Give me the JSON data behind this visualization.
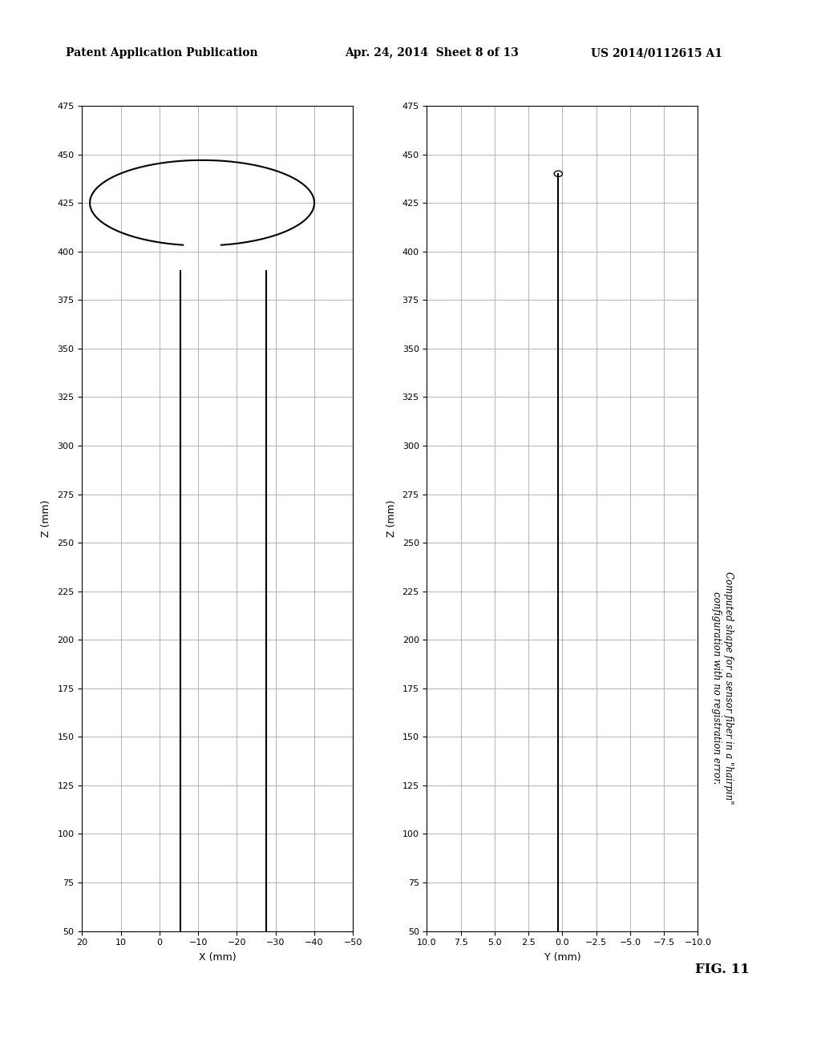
{
  "header_left": "Patent Application Publication",
  "header_center": "Apr. 24, 2014  Sheet 8 of 13",
  "header_right": "US 2014/0112615 A1",
  "fig_label": "FIG. 11",
  "caption": "Computed shape for a sensor fiber in a \"hairpin\"\nconfiguration with no registration error.",
  "plot1": {
    "xlabel": "X (mm)",
    "ylabel": "Z (mm)",
    "xlim": [
      20,
      -50
    ],
    "ylim": [
      50,
      475
    ],
    "xticks": [
      20,
      10,
      0,
      -10,
      -20,
      -30,
      -40,
      -50
    ],
    "yticks": [
      50,
      75,
      100,
      125,
      150,
      175,
      200,
      225,
      250,
      275,
      300,
      325,
      350,
      375,
      400,
      425,
      450,
      475
    ]
  },
  "plot2": {
    "xlabel": "Y (mm)",
    "ylabel": "Z (mm)",
    "xlim": [
      10,
      -10
    ],
    "ylim": [
      50,
      475
    ],
    "xticks": [
      10,
      7.5,
      5,
      2.5,
      0,
      -2.5,
      -5,
      -7.5,
      -10
    ],
    "yticks": [
      50,
      75,
      100,
      125,
      150,
      175,
      200,
      225,
      250,
      275,
      300,
      325,
      350,
      375,
      400,
      425,
      450,
      475
    ]
  },
  "background_color": "#ffffff",
  "grid_color": "#999999",
  "line_color": "#000000"
}
